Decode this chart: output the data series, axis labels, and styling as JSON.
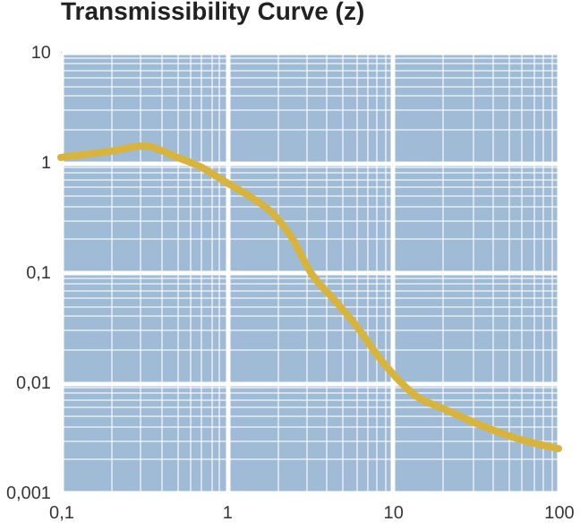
{
  "chart_data": {
    "type": "line",
    "title": "Transmissibility Curve (z)",
    "log": "xy",
    "grid": true,
    "x": [
      0.1,
      0.2,
      0.32,
      0.49,
      0.7,
      1,
      1.4,
      1.9,
      2.5,
      3.2,
      4.5,
      6.3,
      8,
      10,
      14,
      20,
      35,
      60,
      100
    ],
    "series": [
      {
        "color": "#d8b43c",
        "values": [
          1.1,
          1.25,
          1.4,
          1.12,
          0.9,
          0.65,
          0.48,
          0.34,
          0.2,
          0.1,
          0.055,
          0.03,
          0.018,
          0.012,
          0.0074,
          0.0058,
          0.004,
          0.003,
          0.0025
        ]
      }
    ],
    "xlim": [
      0.1,
      100
    ],
    "ylim": [
      0.001,
      10
    ],
    "xticks": [
      {
        "value": 0.1,
        "label": "0,1"
      },
      1,
      10,
      100
    ],
    "yticks": [
      {
        "value": 0.001,
        "label": "0,001"
      },
      {
        "value": 0.01,
        "label": "0,01"
      },
      {
        "value": 0.1,
        "label": "0,1"
      },
      1,
      10
    ],
    "line_style": "solid",
    "marker": "none"
  }
}
